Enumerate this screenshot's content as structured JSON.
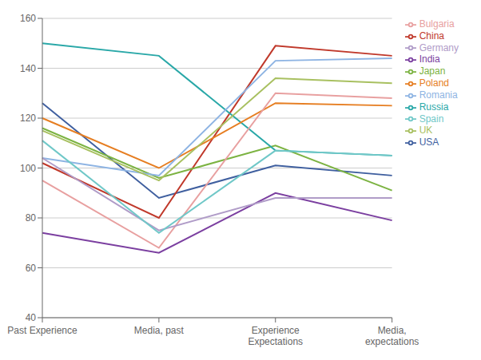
{
  "chart_data": {
    "type": "line",
    "categories": [
      "Past Experience",
      "Media, past",
      "Experience\nExpectations",
      "Media,\nexpectations"
    ],
    "series": [
      {
        "name": "USA",
        "color": "#3F5F9F",
        "values": [
          126,
          88,
          101,
          97
        ]
      },
      {
        "name": "China",
        "color": "#C0392B",
        "values": [
          102,
          80,
          149,
          145
        ]
      },
      {
        "name": "Japan",
        "color": "#7CB342",
        "values": [
          116,
          96,
          109,
          91
        ]
      },
      {
        "name": "India",
        "color": "#7B3FA0",
        "values": [
          74,
          66,
          90,
          79
        ]
      },
      {
        "name": "Russia",
        "color": "#2AA8A8",
        "values": [
          150,
          145,
          107,
          105
        ]
      },
      {
        "name": "Poland",
        "color": "#E67E22",
        "values": [
          120,
          100,
          126,
          125
        ]
      },
      {
        "name": "Romania",
        "color": "#8EB4E3",
        "values": [
          104,
          97,
          143,
          144
        ]
      },
      {
        "name": "Bulgaria",
        "color": "#E8A0A0",
        "values": [
          95,
          68,
          130,
          128
        ]
      },
      {
        "name": "UK",
        "color": "#A8C060",
        "values": [
          115,
          95,
          136,
          134
        ]
      },
      {
        "name": "Germany",
        "color": "#B09CC8",
        "values": [
          104,
          75,
          88,
          88
        ]
      },
      {
        "name": "Spain",
        "color": "#70C8C8",
        "values": [
          111,
          74,
          107,
          105
        ]
      }
    ],
    "ylim": [
      40,
      160
    ],
    "yticks": [
      40,
      60,
      80,
      100,
      120,
      140,
      160
    ],
    "grid": true,
    "legend": "upper right"
  }
}
